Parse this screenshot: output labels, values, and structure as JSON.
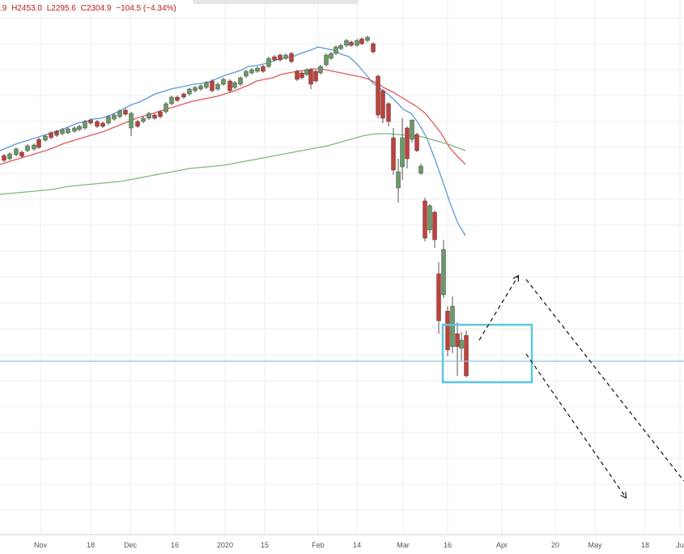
{
  "ohlc_legend": {
    "open": ".9",
    "high": "H2453.0",
    "low": "L2295.6",
    "close": "C2304.9",
    "change": "−104.5 (−4.34%)"
  },
  "colors": {
    "up_body": "#6b9a67",
    "down_body": "#c0413a",
    "wick": "#555555",
    "ma_fast": "#5b9bd5",
    "ma_mid": "#e05a5a",
    "ma_slow": "#7fb77e",
    "horizontal_line": "#8ec5e8",
    "rectangle": "#5bc8e0",
    "arrows": "#222222",
    "grid": "#eeeeee"
  },
  "chart_data": {
    "type": "candlestick",
    "x_tick_labels": [
      "Nov",
      "18",
      "Dec",
      "16",
      "2020",
      "15",
      "Feb",
      "14",
      "Mar",
      "16",
      "Apr",
      "20",
      "May",
      "18",
      "Ju"
    ],
    "grid": true,
    "series": [
      {
        "key": "ma_fast",
        "values": [
          186,
          182,
          178,
          175,
          172,
          169,
          166,
          163,
          160,
          156,
          152,
          150,
          147,
          146,
          143,
          139,
          134,
          129,
          126,
          121,
          116,
          113,
          110,
          108,
          106,
          104,
          103,
          101,
          97,
          93,
          90,
          87,
          82,
          81,
          79,
          76,
          73,
          71,
          69,
          65,
          62,
          58,
          60,
          62,
          67,
          70,
          79,
          90,
          102,
          109,
          116,
          125,
          135,
          140,
          153,
          170,
          195,
          222,
          250,
          275,
          291
        ]
      },
      {
        "key": "ma_mid",
        "values": [
          203,
          200,
          197,
          194,
          191,
          188,
          185,
          181,
          177,
          174,
          171,
          168,
          165,
          162,
          158,
          154,
          150,
          146,
          143,
          140,
          137,
          134,
          131,
          128,
          125,
          123,
          121,
          119,
          116,
          113,
          109,
          105,
          100,
          98,
          96,
          92,
          90,
          88,
          87,
          85,
          85,
          87,
          89,
          91,
          93,
          95,
          98,
          103,
          109,
          114,
          120,
          126,
          132,
          140,
          152,
          165,
          182,
          193,
          203
        ]
      },
      {
        "key": "ma_slow",
        "values": [
          240,
          239,
          238,
          237,
          236,
          235,
          234,
          232,
          230,
          229,
          228,
          227,
          226,
          225,
          224,
          222,
          220,
          218,
          216,
          214,
          212,
          210,
          208,
          207,
          206,
          205,
          204,
          202,
          200,
          198,
          196,
          194,
          192,
          190,
          188,
          186,
          184,
          182,
          180,
          177,
          174,
          171,
          168,
          166,
          165,
          165,
          166,
          167,
          168,
          169,
          172,
          175,
          178,
          182,
          186
        ]
      }
    ],
    "annotations": {
      "horizontal_line": "support level",
      "rectangle": "consolidation zone",
      "arrows": [
        "projected bounce",
        "projected decline",
        "projected decline"
      ]
    }
  }
}
